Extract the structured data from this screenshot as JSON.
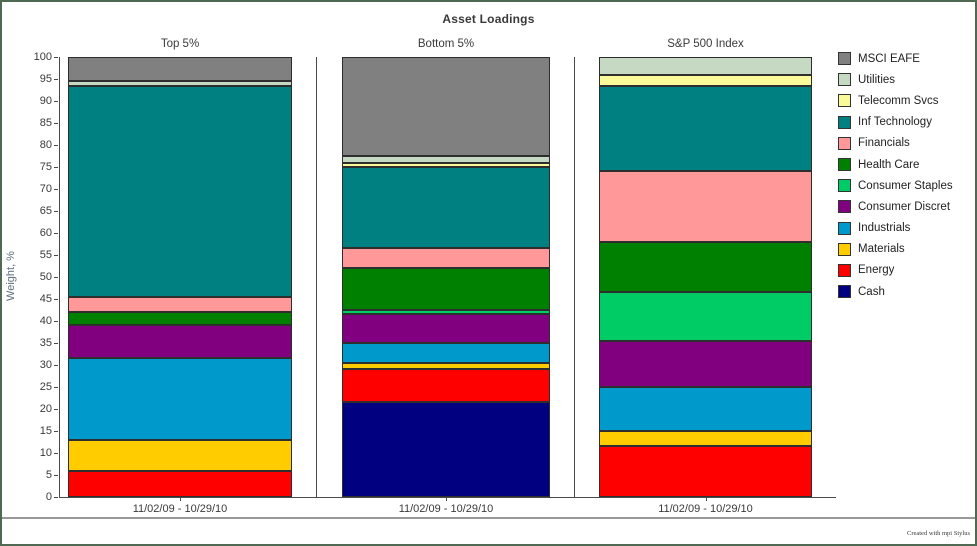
{
  "title": "Asset Loadings",
  "y_axis_title": "Weight, %",
  "footer": {
    "credit": "Created with mpi Stylus"
  },
  "frame_border_color": "#4F6952",
  "chart_data": {
    "type": "bar",
    "subtype": "stacked-columns-3-panels",
    "title": "Asset Loadings",
    "ylabel": "Weight, %",
    "ylim": [
      0,
      100
    ],
    "yticks": [
      0,
      5,
      10,
      15,
      20,
      25,
      30,
      35,
      40,
      45,
      50,
      55,
      60,
      65,
      70,
      75,
      80,
      85,
      90,
      95,
      100
    ],
    "grid": "off",
    "legend_position": "right",
    "legend": [
      {
        "label": "MSCI EAFE",
        "color": "#808080"
      },
      {
        "label": "Utilities",
        "color": "#C6DAC3"
      },
      {
        "label": "Telecomm Svcs",
        "color": "#FBFA9B"
      },
      {
        "label": "Inf Technology",
        "color": "#008080"
      },
      {
        "label": "Financials",
        "color": "#FF9999"
      },
      {
        "label": "Health Care",
        "color": "#008000"
      },
      {
        "label": "Consumer Staples",
        "color": "#00CC66"
      },
      {
        "label": "Consumer Discret",
        "color": "#800080"
      },
      {
        "label": "Industrials",
        "color": "#0099CC"
      },
      {
        "label": "Materials",
        "color": "#FFCC00"
      },
      {
        "label": "Energy",
        "color": "#FF0000"
      },
      {
        "label": "Cash",
        "color": "#000080"
      }
    ],
    "stack_order_bottom_to_top": [
      "Cash",
      "Energy",
      "Materials",
      "Industrials",
      "Consumer Discret",
      "Consumer Staples",
      "Health Care",
      "Financials",
      "Inf Technology",
      "Telecomm Svcs",
      "Utilities",
      "MSCI EAFE"
    ],
    "panels": [
      {
        "title": "Top 5%",
        "x_tick_label": "11/02/09 - 10/29/10",
        "values": {
          "Cash": 0,
          "Energy": 6,
          "Materials": 7,
          "Industrials": 18.5,
          "Consumer Discret": 7.5,
          "Consumer Staples": 0,
          "Health Care": 3,
          "Financials": 3.5,
          "Inf Technology": 48,
          "Telecomm Svcs": 0,
          "Utilities": 1,
          "MSCI EAFE": 5.5
        }
      },
      {
        "title": "Bottom 5%",
        "x_tick_label": "11/02/09 - 10/29/10",
        "values": {
          "Cash": 21.5,
          "Energy": 7.5,
          "Materials": 1.5,
          "Industrials": 4.5,
          "Consumer Discret": 6.5,
          "Consumer Staples": 1,
          "Health Care": 9.5,
          "Financials": 4.5,
          "Inf Technology": 18.5,
          "Telecomm Svcs": 1,
          "Utilities": 1.5,
          "MSCI EAFE": 22.5
        }
      },
      {
        "title": "S&P 500 Index",
        "x_tick_label": "11/02/09 - 10/29/10",
        "values": {
          "Cash": 0,
          "Energy": 11.5,
          "Materials": 3.5,
          "Industrials": 10,
          "Consumer Discret": 10.5,
          "Consumer Staples": 11,
          "Health Care": 11.5,
          "Financials": 16,
          "Inf Technology": 19.5,
          "Telecomm Svcs": 2.5,
          "Utilities": 4,
          "MSCI EAFE": 0
        }
      }
    ]
  }
}
